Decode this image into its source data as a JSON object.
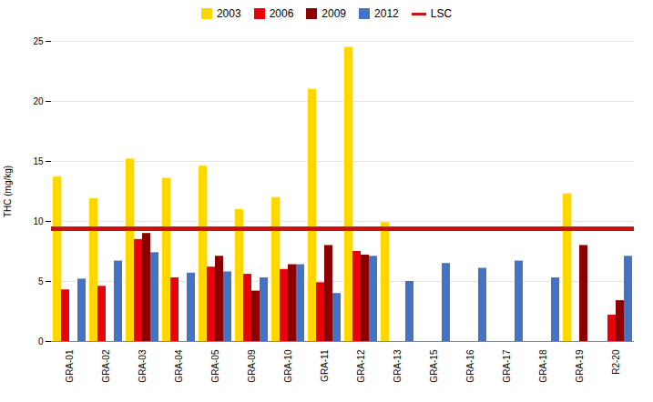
{
  "chart_data": {
    "type": "bar",
    "categories": [
      "GRA-01",
      "GRA-02",
      "GRA-03",
      "GRA-04",
      "GRA-05",
      "GRA-09",
      "GRA-10",
      "GRA-11",
      "GRA-12",
      "GRA-13",
      "GRA-15",
      "GRA-16",
      "GRA-17",
      "GRA-18",
      "GRA-19",
      "R2-20"
    ],
    "series": [
      {
        "name": "2003",
        "color": "#FFD700",
        "values": [
          13.7,
          11.9,
          15.2,
          13.6,
          14.6,
          11.0,
          12.0,
          21.0,
          24.5,
          9.9,
          null,
          null,
          null,
          null,
          12.3,
          null
        ]
      },
      {
        "name": "2006",
        "color": "#E8000A",
        "values": [
          4.3,
          4.6,
          8.5,
          5.3,
          6.2,
          5.6,
          6.0,
          4.9,
          7.5,
          null,
          null,
          null,
          null,
          null,
          null,
          2.2
        ]
      },
      {
        "name": "2009",
        "color": "#8B0000",
        "values": [
          null,
          null,
          9.0,
          null,
          7.1,
          4.2,
          6.4,
          8.0,
          7.2,
          null,
          null,
          null,
          null,
          null,
          8.0,
          3.4
        ]
      },
      {
        "name": "2012",
        "color": "#4472C4",
        "values": [
          5.2,
          6.7,
          7.4,
          5.7,
          5.8,
          5.3,
          6.4,
          4.0,
          7.1,
          5.0,
          6.5,
          6.1,
          6.7,
          5.3,
          null,
          7.1
        ]
      }
    ],
    "lines": [
      {
        "name": "LSC",
        "value": 9.4,
        "color": "#CC1111"
      }
    ],
    "ylabel": "THC (mg/kg)",
    "ylim": [
      0,
      25
    ],
    "yticks": [
      0,
      5,
      10,
      15,
      20,
      25
    ],
    "grid": true,
    "legend": "top"
  }
}
